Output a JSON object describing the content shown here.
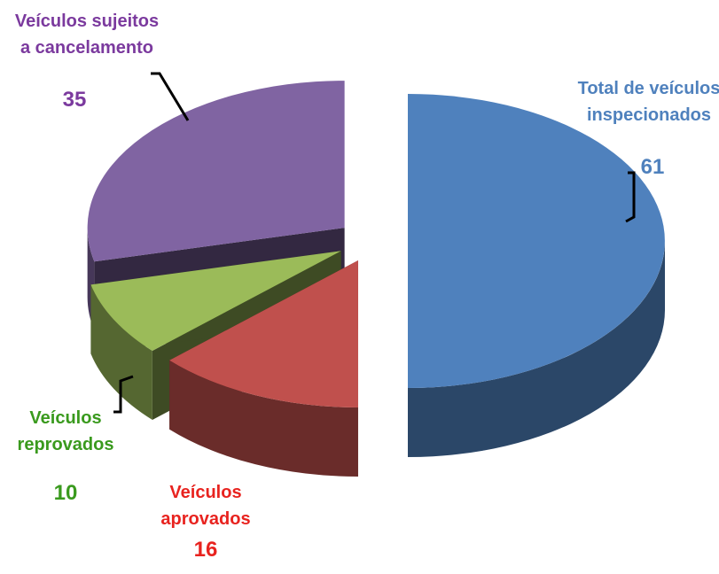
{
  "chart_data": {
    "type": "pie",
    "title": "",
    "categories": [
      "Total de veículos inspecionados",
      "Veículos aprovados",
      "Veículos reprovados",
      "Veículos sujeitos a cancelamento"
    ],
    "values": [
      61,
      16,
      10,
      35
    ],
    "colors": [
      "#4F81BD",
      "#C0504D",
      "#9BBB59",
      "#8064A2"
    ],
    "three_d": true,
    "exploded": true,
    "legend": "none",
    "labels": [
      {
        "lines": [
          "Total de veículos",
          "inspecionados"
        ],
        "value": "61",
        "color": "#4F81BD"
      },
      {
        "lines": [
          "Veículos",
          "aprovados"
        ],
        "value": "16",
        "color": "#E8231F"
      },
      {
        "lines": [
          "Veículos",
          "reprovados"
        ],
        "value": "10",
        "color": "#3A9A1E"
      },
      {
        "lines": [
          "Veículos sujeitos",
          "a cancelamento"
        ],
        "value": "35",
        "color": "#7B3A9E"
      }
    ]
  }
}
